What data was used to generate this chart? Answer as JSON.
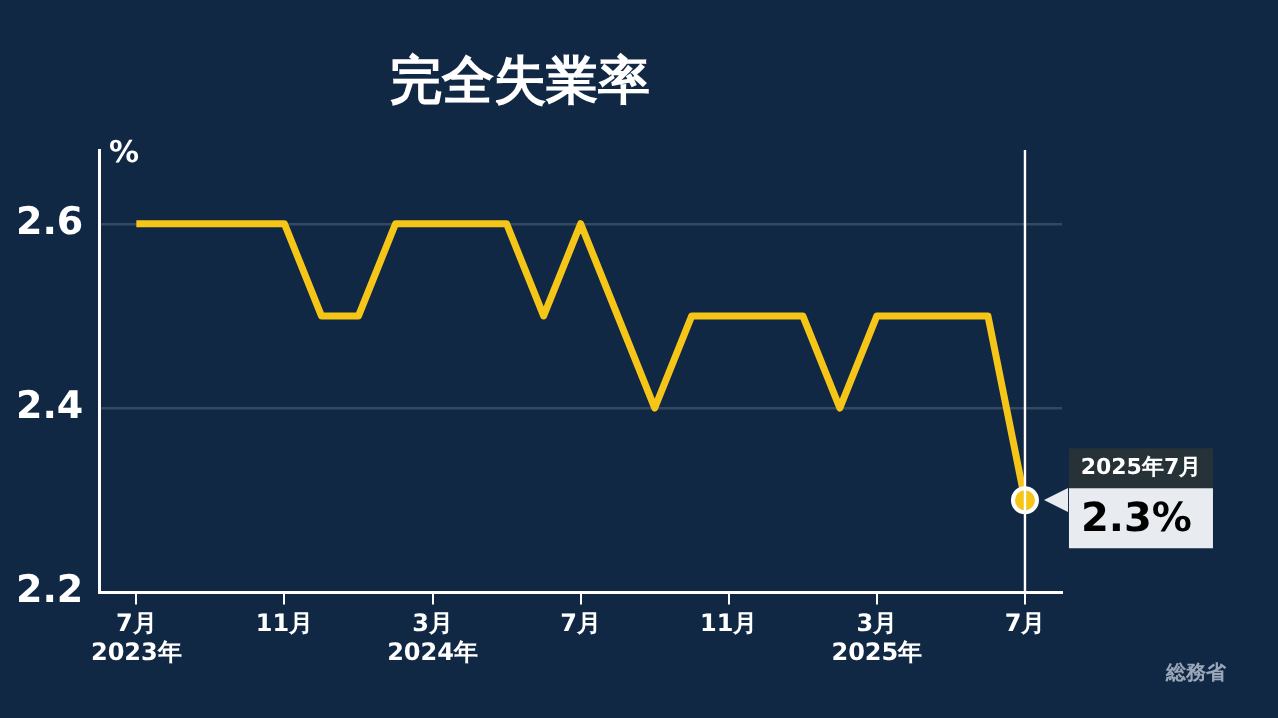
{
  "chart_data": {
    "type": "line",
    "title": "完全失業率",
    "ylabel": "%",
    "x": [
      "2023-07",
      "2023-08",
      "2023-09",
      "2023-10",
      "2023-11",
      "2023-12",
      "2024-01",
      "2024-02",
      "2024-03",
      "2024-04",
      "2024-05",
      "2024-06",
      "2024-07",
      "2024-08",
      "2024-09",
      "2024-10",
      "2024-11",
      "2024-12",
      "2025-01",
      "2025-02",
      "2025-03",
      "2025-04",
      "2025-05",
      "2025-06",
      "2025-07"
    ],
    "xlim": [
      "2023-06",
      "2025-08"
    ],
    "xticks": [
      {
        "value": "2023-07",
        "label": "7月\n2023年"
      },
      {
        "value": "2023-11",
        "label": "11月"
      },
      {
        "value": "2024-03",
        "label": "3月\n2024年"
      },
      {
        "value": "2024-07",
        "label": "7月"
      },
      {
        "value": "2024-11",
        "label": "11月"
      },
      {
        "value": "2025-03",
        "label": "3月\n2025年"
      },
      {
        "value": "2025-07",
        "label": "7月"
      }
    ],
    "series": [
      {
        "color": "#f5c518",
        "values": [
          2.6,
          2.6,
          2.6,
          2.6,
          2.6,
          2.5,
          2.5,
          2.6,
          2.6,
          2.6,
          2.6,
          2.5,
          2.6,
          2.5,
          2.4,
          2.5,
          2.5,
          2.5,
          2.5,
          2.4,
          2.5,
          2.5,
          2.5,
          2.5,
          2.3
        ],
        "value_labels": [
          null,
          null,
          null,
          null,
          null,
          null,
          null,
          null,
          null,
          null,
          null,
          null,
          null,
          null,
          null,
          null,
          null,
          null,
          null,
          null,
          null,
          null,
          null,
          null,
          "2.3%"
        ]
      }
    ],
    "ylim": [
      2.2,
      2.68
    ],
    "yticks": [
      2.2,
      2.4,
      2.6
    ],
    "grid": "y",
    "legend": false,
    "line_style": "solid",
    "ref_lines": [
      {
        "axis": "x",
        "value": "2025-07",
        "color": "#ffffff"
      }
    ],
    "annotations": [
      "2025年7月",
      "総務省"
    ]
  }
}
